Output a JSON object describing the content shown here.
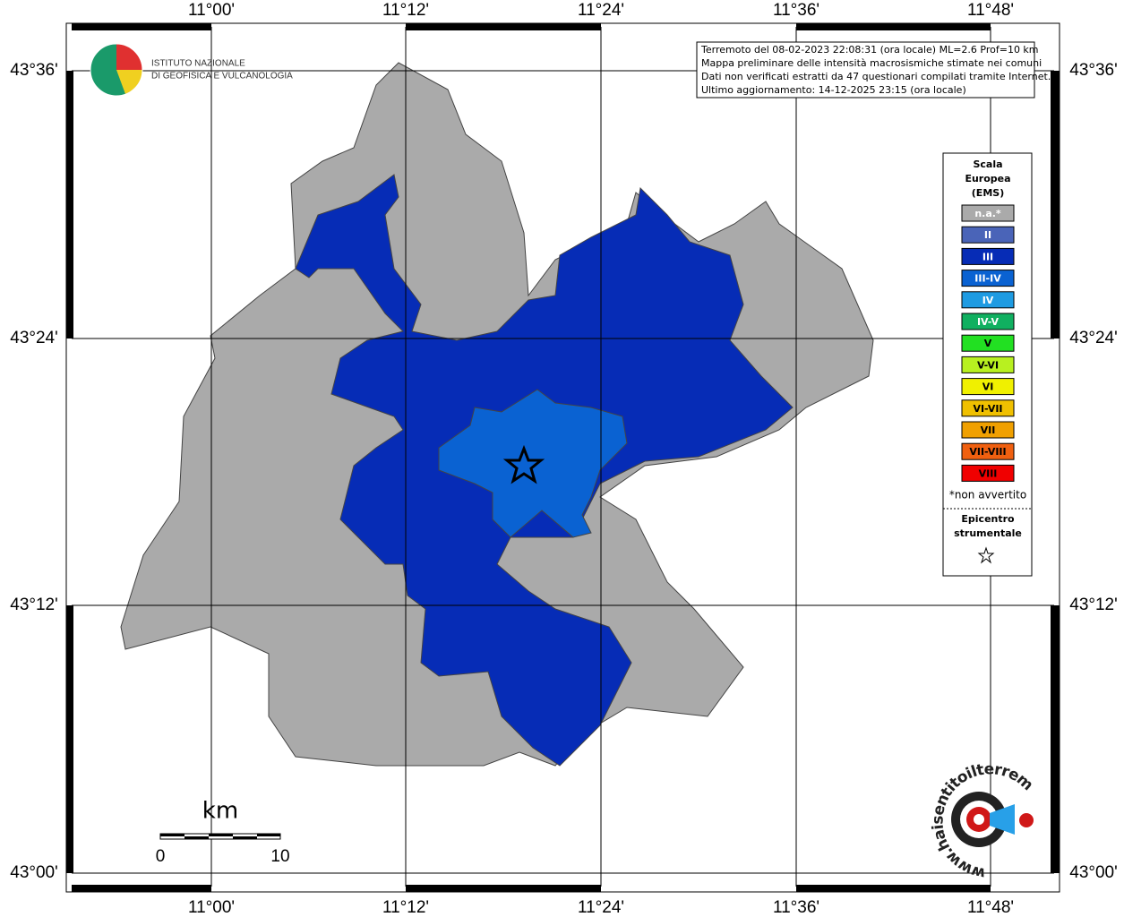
{
  "map": {
    "lon_labels": [
      "11°00'",
      "11°12'",
      "11°24'",
      "11°36'",
      "11°48'"
    ],
    "lat_labels": [
      "43°36'",
      "43°24'",
      "43°12'",
      "43°00'"
    ],
    "info": [
      "Terremoto del 08-02-2023 22:08:31 (ora locale) ML=2.6 Prof=10 km",
      "Mappa preliminare delle intensità macrosismiche stimate nei comuni",
      "Dati non verificati estratti da 47 questionari compilati tramite Internet.",
      "Ultimo aggiornamento: 14-12-2025 23:15 (ora locale)"
    ],
    "institute": [
      "ISTITUTO NAZIONALE",
      "DI GEOFISICA E VULCANOLOGIA"
    ],
    "legend": {
      "title": [
        "Scala",
        "Europea",
        "(EMS)"
      ],
      "items": [
        {
          "label": "n.a.*",
          "color": "#aaaaaa"
        },
        {
          "label": "II",
          "color": "#4a64b8"
        },
        {
          "label": "III",
          "color": "#062cb6"
        },
        {
          "label": "III-IV",
          "color": "#0a62d2"
        },
        {
          "label": "IV",
          "color": "#1e9be2"
        },
        {
          "label": "IV-V",
          "color": "#10b060"
        },
        {
          "label": "V",
          "color": "#22e022"
        },
        {
          "label": "V-VI",
          "color": "#b8f020"
        },
        {
          "label": "VI",
          "color": "#f0f000"
        },
        {
          "label": "VI-VII",
          "color": "#f0c000"
        },
        {
          "label": "VII",
          "color": "#f0a000"
        },
        {
          "label": "VII-VIII",
          "color": "#f06010"
        },
        {
          "label": "VIII",
          "color": "#f00000"
        }
      ],
      "note": "*non avvertito",
      "epicenter": [
        "Epicentro",
        "strumentale"
      ]
    },
    "scale_bar": {
      "unit": "km",
      "ticks": [
        "0",
        "10"
      ]
    },
    "site_logo": "www.haisentitoilterremoto.it"
  }
}
